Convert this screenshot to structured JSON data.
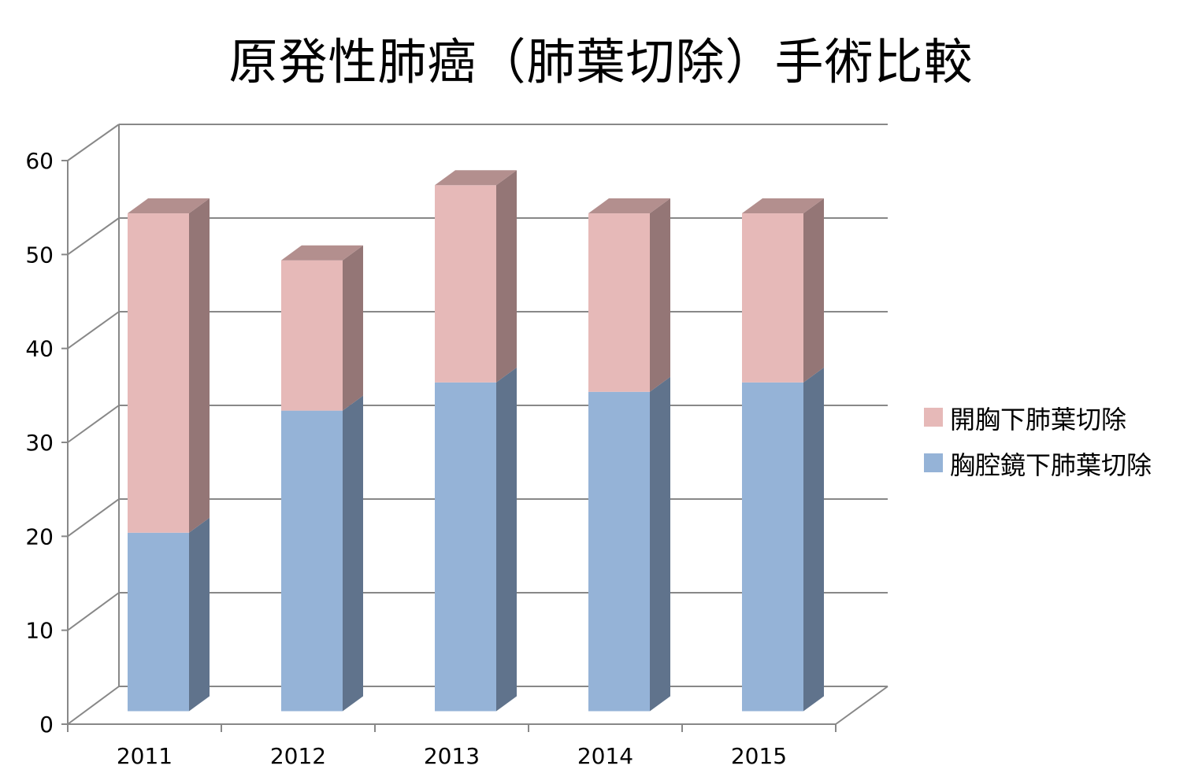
{
  "chart_data": {
    "type": "bar",
    "stacked": true,
    "style": "3d",
    "title": "原発性肺癌（肺葉切除）手術比較",
    "categories": [
      "2011",
      "2012",
      "2013",
      "2014",
      "2015"
    ],
    "series": [
      {
        "name": "胸腔鏡下肺葉切除",
        "values": [
          19,
          32,
          35,
          34,
          35
        ],
        "color": "#95b3d7",
        "side_color": "#60738c",
        "top_color": "#7c93b0"
      },
      {
        "name": "開胸下肺葉切除",
        "values": [
          34,
          16,
          21,
          19,
          18
        ],
        "color": "#e6b9b8",
        "side_color": "#947676",
        "top_color": "#b38f8e"
      }
    ],
    "ylim": [
      0,
      60
    ],
    "yticks": [
      0,
      10,
      20,
      30,
      40,
      50,
      60
    ],
    "grid": true,
    "legend_position": "right"
  }
}
